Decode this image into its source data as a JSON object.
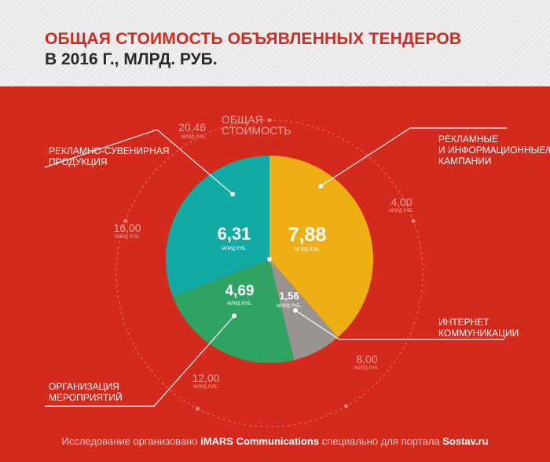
{
  "header": {
    "title": "ОБЩАЯ СТОИМОСТЬ ОБЪЯВЛЕННЫХ ТЕНДЕРОВ",
    "subtitle": "В 2016 Г., МЛРД. РУБ."
  },
  "chart_data": {
    "type": "pie",
    "unit": "МЛРД РУБ.",
    "slices": [
      {
        "label": "РЕКЛАМНЫЕ И ИНФОРМАЦИОННЫЕ/PR КАМПАНИИ",
        "value": 7.88,
        "display": "7,88",
        "color": "#efae14"
      },
      {
        "label": "ИНТЕРНЕТ КОММУНИКАЦИИ",
        "value": 1.56,
        "display": "1,56",
        "color": "#9a9491"
      },
      {
        "label": "ОРГАНИЗАЦИЯ МЕРОПРИЯТИЙ",
        "value": 4.69,
        "display": "4,69",
        "color": "#2fa462"
      },
      {
        "label": "РЕКЛАМНО-СУВЕНИРНАЯ ПРОДУКЦИЯ",
        "value": 6.31,
        "display": "6,31",
        "color": "#12aaa4"
      }
    ],
    "total": {
      "value": 20.46,
      "display": "20,46",
      "label": "ОБЩАЯ СТОИМОСТЬ"
    },
    "scale_ticks": [
      "4,00",
      "8,00",
      "12,00",
      "16,00"
    ]
  },
  "callouts": {
    "pr": [
      "РЕКЛАМНЫЕ",
      "И ИНФОРМАЦИОННЫЕ/PR",
      "КАМПАНИИ"
    ],
    "internet": [
      "ИНТЕРНЕТ",
      "КОММУНИКАЦИИ"
    ],
    "events": [
      "ОРГАНИЗАЦИЯ",
      "МЕРОПРИЯТИЙ"
    ],
    "souvenir": [
      "РЕКЛАМНО-СУВЕНИРНАЯ",
      "ПРОДУКЦИЯ"
    ]
  },
  "footer": {
    "prefix": "Исследование организовано ",
    "org": "iMARS Communications",
    "middle": " специально для портала ",
    "portal": "Sostav.ru"
  }
}
